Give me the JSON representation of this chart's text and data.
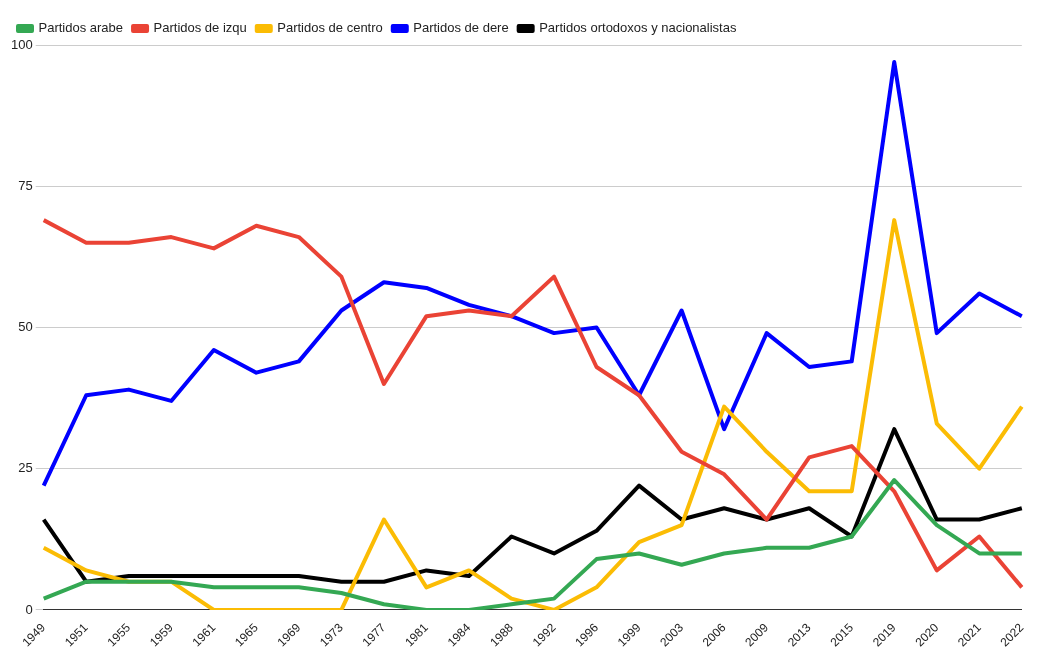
{
  "chart_data": {
    "type": "line",
    "categories": [
      "1949",
      "1951",
      "1955",
      "1959",
      "1961",
      "1965",
      "1969",
      "1973",
      "1977",
      "1981",
      "1984",
      "1988",
      "1992",
      "1996",
      "1999",
      "2003",
      "2006",
      "2009",
      "2013",
      "2015",
      "2019",
      "2020",
      "2021",
      "2022"
    ],
    "series": [
      {
        "name": "Partidos arabe",
        "color": "#34a853",
        "values": [
          2,
          5,
          5,
          5,
          4,
          4,
          4,
          3,
          1,
          0,
          0,
          1,
          2,
          9,
          10,
          8,
          10,
          11,
          11,
          13,
          23,
          15,
          10,
          10
        ]
      },
      {
        "name": "Partidos de izqu",
        "color": "#ea4335",
        "values": [
          69,
          65,
          65,
          66,
          64,
          68,
          66,
          59,
          40,
          52,
          53,
          52,
          59,
          43,
          38,
          28,
          24,
          16,
          27,
          29,
          21,
          7,
          13,
          4
        ]
      },
      {
        "name": "Partidos de centro",
        "color": "#fbbc04",
        "values": [
          11,
          7,
          5,
          5,
          0,
          0,
          0,
          0,
          16,
          4,
          7,
          2,
          0,
          4,
          12,
          15,
          36,
          28,
          21,
          21,
          69,
          33,
          25,
          36
        ]
      },
      {
        "name": "Partidos de dere",
        "color": "#0000ff",
        "values": [
          22,
          38,
          39,
          37,
          46,
          42,
          44,
          53,
          58,
          57,
          54,
          52,
          49,
          50,
          38,
          53,
          32,
          49,
          43,
          44,
          97,
          49,
          56,
          52
        ]
      },
      {
        "name": "Partidos ortodoxos y nacionalistas",
        "color": "#000000",
        "values": [
          16,
          5,
          6,
          6,
          6,
          6,
          6,
          5,
          5,
          7,
          6,
          13,
          10,
          14,
          22,
          16,
          18,
          16,
          18,
          13,
          32,
          16,
          16,
          18
        ]
      }
    ],
    "ylim": [
      0,
      100
    ],
    "yticks": [
      0,
      25,
      50,
      75,
      100
    ],
    "grid": "y",
    "legend": "top left",
    "marker": "none",
    "line_style": "solid"
  }
}
